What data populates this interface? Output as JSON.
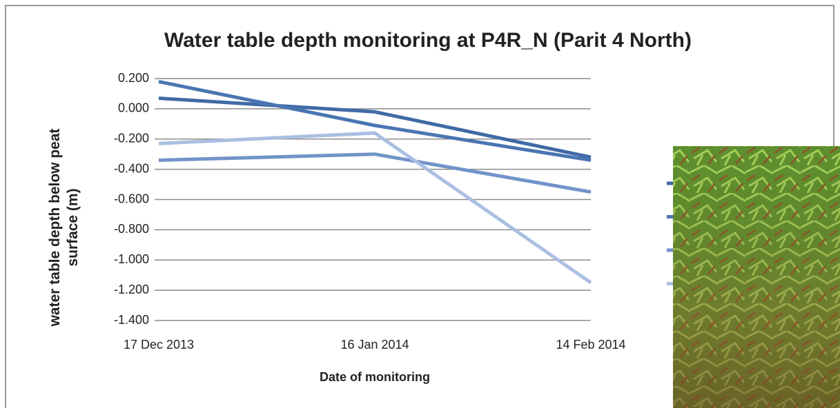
{
  "chart_data": {
    "type": "line",
    "title": "Water table depth monitoring at P4R_N (Parit 4 North)",
    "x_label": "Date of monitoring",
    "y_label": "water table depth below peat surface (m)",
    "categories": [
      "17 Dec 2013",
      "16 Jan 2014",
      "14 Feb 2014"
    ],
    "series": [
      {
        "color": "#3f6aa6",
        "values": [
          0.07,
          -0.02,
          -0.32
        ]
      },
      {
        "color": "#4a75b2",
        "values": [
          0.18,
          -0.11,
          -0.34
        ]
      },
      {
        "color": "#7193c9",
        "values": [
          -0.34,
          -0.3,
          -0.55
        ]
      },
      {
        "color": "#aabfe2",
        "values": [
          -0.23,
          -0.16,
          -1.15
        ]
      }
    ],
    "ylim": [
      -1.4,
      0.2
    ],
    "yticks": [
      {
        "value": 0.2,
        "label": "0.200"
      },
      {
        "value": 0,
        "label": "0.000"
      },
      {
        "value": -0.2,
        "label": "-0.200"
      },
      {
        "value": -0.4,
        "label": "-0.400"
      },
      {
        "value": -0.6,
        "label": "-0.600"
      },
      {
        "value": -0.8,
        "label": "-0.800"
      },
      {
        "value": -1,
        "label": "-1.000"
      },
      {
        "value": -1.2,
        "label": "-1.200"
      },
      {
        "value": -1.4,
        "label": "-1.400"
      }
    ],
    "grid": true
  }
}
